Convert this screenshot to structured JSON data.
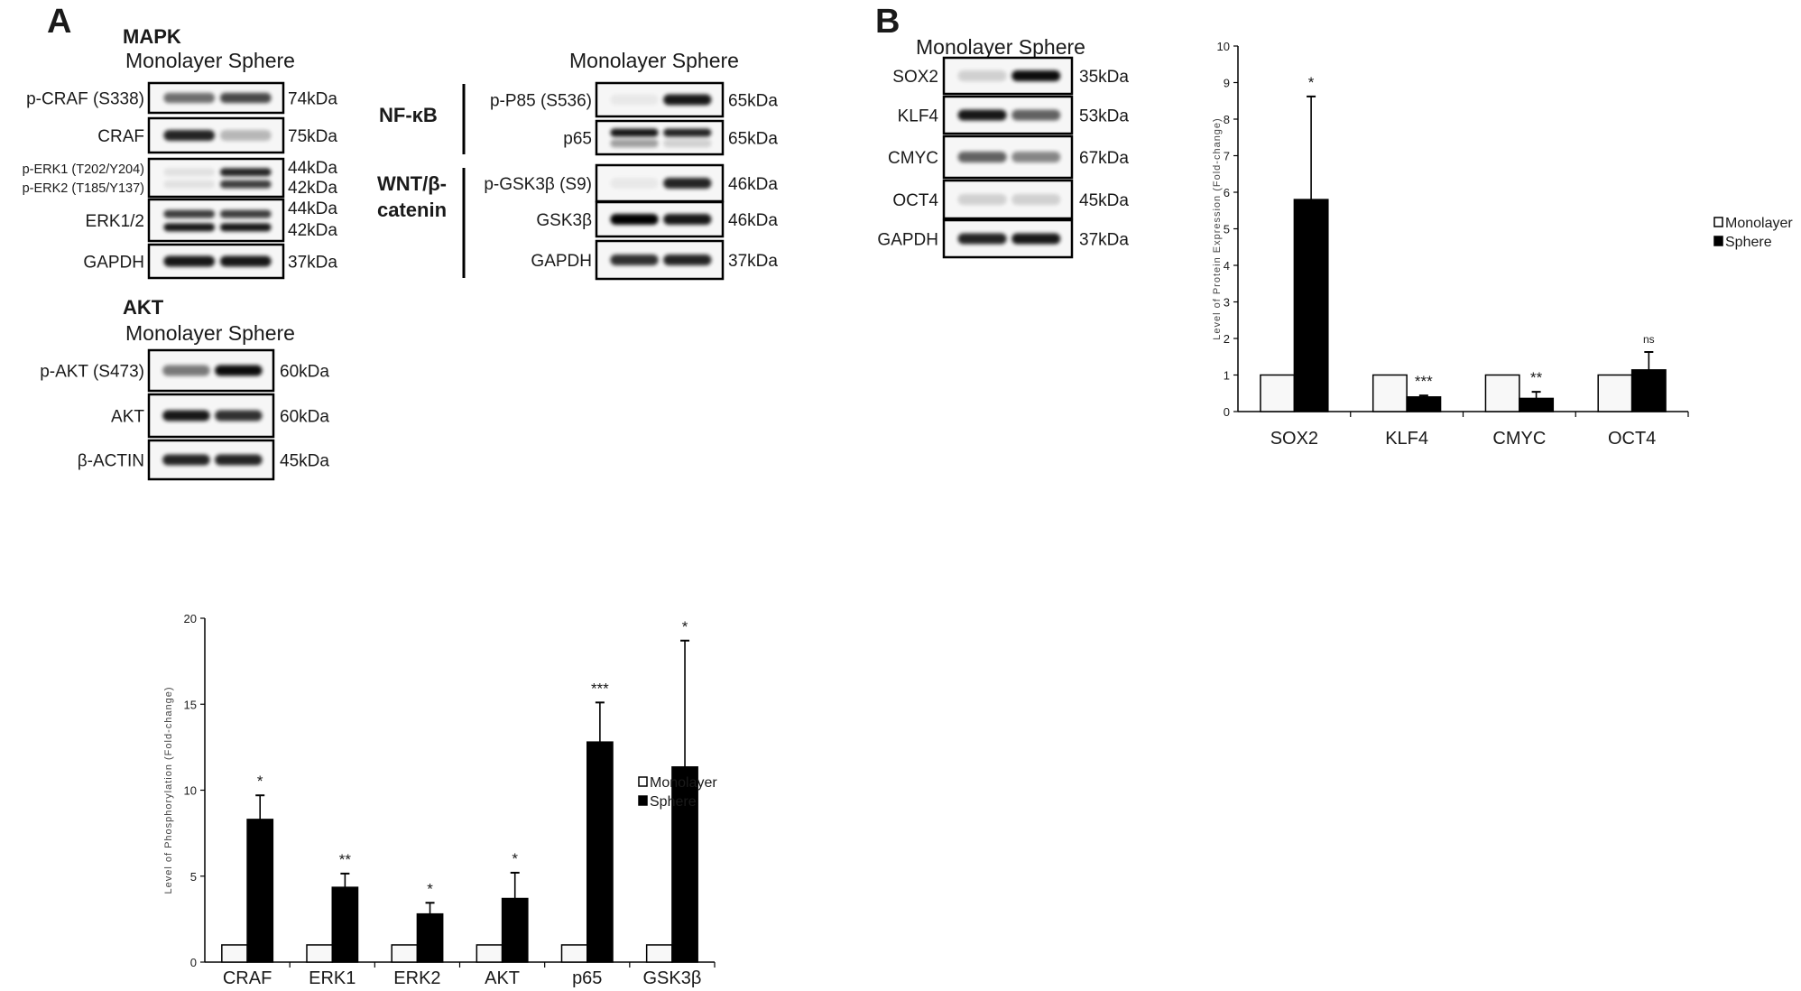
{
  "panel_a": {
    "letter": "A",
    "mapk": {
      "title": "MAPK",
      "lanes": "Monolayer Sphere",
      "rows": [
        {
          "labels": [
            "p-CRAF (S338)"
          ],
          "kda": [
            "74kDa"
          ],
          "bands": [
            [
              0.55,
              0.7
            ]
          ]
        },
        {
          "labels": [
            "CRAF"
          ],
          "kda": [
            "75kDa"
          ],
          "bands": [
            [
              0.85,
              0.25
            ]
          ]
        },
        {
          "labels": [
            "p-ERK1 (T202/Y204)",
            "p-ERK2 (T185/Y137)"
          ],
          "kda": [
            "44kDa",
            "42kDa"
          ],
          "bands": [
            [
              0.08,
              0.85
            ],
            [
              0.08,
              0.75
            ]
          ]
        },
        {
          "labels": [
            "ERK1/2"
          ],
          "kda": [
            "44kDa",
            "42kDa"
          ],
          "bands": [
            [
              0.75,
              0.75
            ],
            [
              0.9,
              0.9
            ]
          ]
        },
        {
          "labels": [
            "GAPDH"
          ],
          "kda": [
            "37kDa"
          ],
          "bands": [
            [
              0.9,
              0.9
            ]
          ]
        }
      ]
    },
    "nfkb_wnt": {
      "lanes": "Monolayer Sphere",
      "group_labels": {
        "nfkb": "NF-κB",
        "wnt_line1": "WNT/β-",
        "wnt_line2": "catenin"
      },
      "rows": [
        {
          "labels": [
            "p-P85 (S536)"
          ],
          "kda": [
            "65kDa"
          ],
          "bands": [
            [
              0.05,
              0.9
            ]
          ]
        },
        {
          "labels": [
            "p65"
          ],
          "kda": [
            "65kDa"
          ],
          "bands": [
            [
              0.9,
              0.85
            ],
            [
              0.35,
              0.15
            ]
          ]
        },
        {
          "labels": [
            "p-GSK3β (S9)"
          ],
          "kda": [
            "46kDa"
          ],
          "bands": [
            [
              0.05,
              0.85
            ]
          ]
        },
        {
          "labels": [
            "GSK3β"
          ],
          "kda": [
            "46kDa"
          ],
          "bands": [
            [
              1.0,
              0.9
            ]
          ]
        },
        {
          "labels": [
            "GAPDH"
          ],
          "kda": [
            "37kDa"
          ],
          "bands": [
            [
              0.8,
              0.85
            ]
          ]
        }
      ]
    },
    "akt": {
      "title": "AKT",
      "lanes": "Monolayer Sphere",
      "rows": [
        {
          "labels": [
            "p-AKT (S473)"
          ],
          "kda": [
            "60kDa"
          ],
          "bands": [
            [
              0.5,
              0.95
            ]
          ]
        },
        {
          "labels": [
            "AKT"
          ],
          "kda": [
            "60kDa"
          ],
          "bands": [
            [
              0.9,
              0.8
            ]
          ]
        },
        {
          "labels": [
            "β-ACTIN"
          ],
          "kda": [
            "45kDa"
          ],
          "bands": [
            [
              0.85,
              0.85
            ]
          ]
        }
      ]
    }
  },
  "panel_b": {
    "letter": "B",
    "blots": {
      "lanes": "Monolayer Sphere",
      "rows": [
        {
          "labels": [
            "SOX2"
          ],
          "kda": [
            "35kDa"
          ],
          "bands": [
            [
              0.15,
              0.95
            ]
          ]
        },
        {
          "labels": [
            "KLF4"
          ],
          "kda": [
            "53kDa"
          ],
          "bands": [
            [
              0.9,
              0.6
            ]
          ]
        },
        {
          "labels": [
            "CMYC"
          ],
          "kda": [
            "67kDa"
          ],
          "bands": [
            [
              0.6,
              0.45
            ]
          ]
        },
        {
          "labels": [
            "OCT4"
          ],
          "kda": [
            "45kDa"
          ],
          "bands": [
            [
              0.15,
              0.15
            ]
          ]
        },
        {
          "labels": [
            "GAPDH"
          ],
          "kda": [
            "37kDa"
          ],
          "bands": [
            [
              0.85,
              0.9
            ]
          ]
        }
      ]
    }
  },
  "chart_data": [
    {
      "id": "phosphorylation",
      "type": "bar",
      "title": "",
      "xlabel": "",
      "ylabel": "Level of Phosphorylation (Fold-change)",
      "ylim": [
        0,
        20
      ],
      "yticks": [
        0,
        5,
        10,
        15,
        20
      ],
      "categories": [
        "CRAF",
        "ERK1",
        "ERK2",
        "AKT",
        "p65",
        "GSK3β"
      ],
      "series": [
        {
          "name": "Monolayer",
          "values": [
            1,
            1,
            1,
            1,
            1,
            1
          ],
          "error": [
            0,
            0,
            0,
            0,
            0,
            0
          ],
          "color": "#ffffff"
        },
        {
          "name": "Sphere",
          "values": [
            8.3,
            4.35,
            2.8,
            3.7,
            12.8,
            11.35
          ],
          "error": [
            1.4,
            0.8,
            0.65,
            1.5,
            2.3,
            7.35
          ],
          "color": "#000000"
        }
      ],
      "annotations": [
        "*",
        "**",
        "*",
        "*",
        "***",
        "*"
      ],
      "legend": {
        "placement": "right",
        "labels": [
          "Monolayer",
          "Sphere"
        ]
      },
      "grid": false
    },
    {
      "id": "protein-expression",
      "type": "bar",
      "title": "",
      "xlabel": "",
      "ylabel": "Level of Protein Expression (Fold-change)",
      "ylim": [
        0,
        10
      ],
      "yticks": [
        0,
        1,
        2,
        3,
        4,
        5,
        6,
        7,
        8,
        9,
        10
      ],
      "categories": [
        "SOX2",
        "KLF4",
        "CMYC",
        "OCT4"
      ],
      "series": [
        {
          "name": "Monolayer",
          "values": [
            1,
            1,
            1,
            1
          ],
          "error": [
            0,
            0,
            0,
            0
          ],
          "color": "#ffffff"
        },
        {
          "name": "Sphere",
          "values": [
            5.8,
            0.4,
            0.36,
            1.14
          ],
          "error": [
            2.82,
            0.04,
            0.18,
            0.49
          ],
          "color": "#000000"
        }
      ],
      "annotations": [
        "*",
        "***",
        "**",
        "ns"
      ],
      "legend": {
        "placement": "right",
        "labels": [
          "Monolayer",
          "Sphere"
        ]
      },
      "grid": false
    }
  ]
}
